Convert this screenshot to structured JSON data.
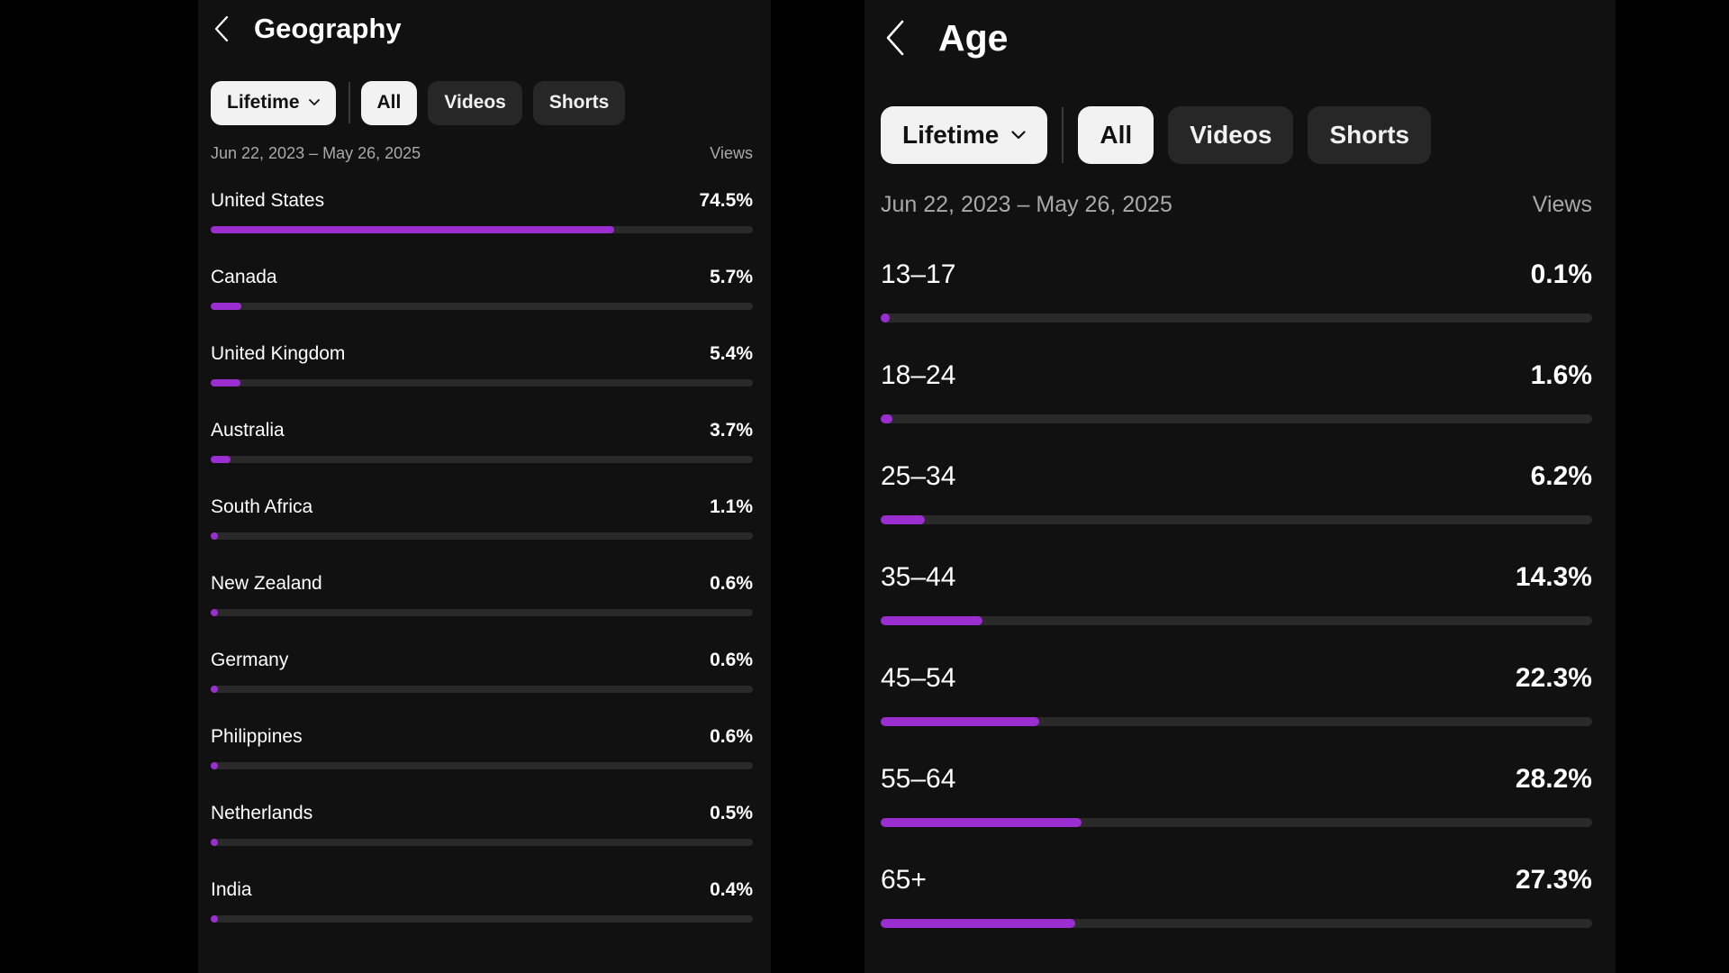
{
  "colors": {
    "accent": "#9a2ed1",
    "panel_bg": "#111111",
    "track": "#2a2a2a"
  },
  "geography": {
    "title": "Geography",
    "back_icon": "chevron-left-icon",
    "filters": {
      "period": "Lifetime",
      "chips": [
        "All",
        "Videos",
        "Shorts"
      ],
      "selected": "All"
    },
    "date_range": "Jun 22, 2023 – May 26, 2025",
    "metric_label": "Views",
    "rows": [
      {
        "label": "United States",
        "value": "74.5%",
        "fill": 74.5
      },
      {
        "label": "Canada",
        "value": "5.7%",
        "fill": 5.7
      },
      {
        "label": "United Kingdom",
        "value": "5.4%",
        "fill": 5.4
      },
      {
        "label": "Australia",
        "value": "3.7%",
        "fill": 3.7
      },
      {
        "label": "South Africa",
        "value": "1.1%",
        "fill": 1.1
      },
      {
        "label": "New Zealand",
        "value": "0.6%",
        "fill": 0.6
      },
      {
        "label": "Germany",
        "value": "0.6%",
        "fill": 0.6
      },
      {
        "label": "Philippines",
        "value": "0.6%",
        "fill": 0.6
      },
      {
        "label": "Netherlands",
        "value": "0.5%",
        "fill": 0.5
      },
      {
        "label": "India",
        "value": "0.4%",
        "fill": 0.4
      }
    ]
  },
  "age": {
    "title": "Age",
    "back_icon": "chevron-left-icon",
    "filters": {
      "period": "Lifetime",
      "chips": [
        "All",
        "Videos",
        "Shorts"
      ],
      "selected": "All"
    },
    "date_range": "Jun 22, 2023 – May 26, 2025",
    "metric_label": "Views",
    "rows": [
      {
        "label": "13–17",
        "value": "0.1%",
        "fill": 0.1
      },
      {
        "label": "18–24",
        "value": "1.6%",
        "fill": 1.6
      },
      {
        "label": "25–34",
        "value": "6.2%",
        "fill": 6.2
      },
      {
        "label": "35–44",
        "value": "14.3%",
        "fill": 14.3
      },
      {
        "label": "45–54",
        "value": "22.3%",
        "fill": 22.3
      },
      {
        "label": "55–64",
        "value": "28.2%",
        "fill": 28.2
      },
      {
        "label": "65+",
        "value": "27.3%",
        "fill": 27.3
      }
    ]
  }
}
